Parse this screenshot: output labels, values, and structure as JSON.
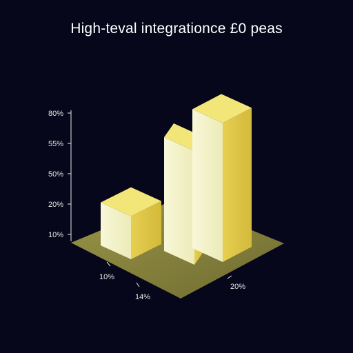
{
  "chart_data": {
    "type": "bar",
    "style": "3d",
    "title": "High-teval integrationce £0 peas",
    "y_ticks": [
      "80%",
      "55%",
      "50%",
      "20%",
      "10%"
    ],
    "x_ticks": [
      "10%",
      "14%",
      "20%"
    ],
    "series": [
      {
        "values": [
          17,
          45,
          55
        ]
      }
    ],
    "ylim": [
      0,
      60
    ],
    "grid": false,
    "colors": {
      "background": "#06071a",
      "floor": "#8c8840",
      "bar_front": "#f4f2c6",
      "bar_top": "#f2e678",
      "bar_side": "#dcc240",
      "axis": "#e8e8e8"
    }
  }
}
